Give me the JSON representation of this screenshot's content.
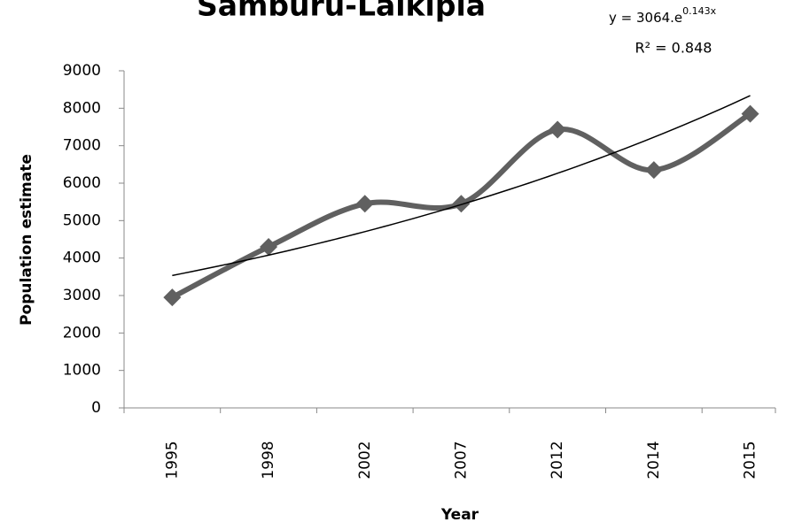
{
  "chart_data": {
    "type": "line",
    "title": "Samburu-Laikipia",
    "xlabel": "Year",
    "ylabel": "Population estimate",
    "categories": [
      "1995",
      "1998",
      "2002",
      "2007",
      "2012",
      "2014",
      "2015"
    ],
    "values": [
      2950,
      4300,
      5450,
      5450,
      7430,
      6350,
      7850
    ],
    "color": "#606060",
    "ylim": [
      0,
      9000
    ],
    "yticks": [
      0,
      1000,
      2000,
      3000,
      4000,
      5000,
      6000,
      7000,
      8000,
      9000
    ],
    "smooth": true,
    "trendline": {
      "a": 3064,
      "b": 0.143,
      "color": "#000000",
      "equation_label": "y = 3064.e",
      "exponent_label": "0.143x",
      "r2_label": "R² = 0.848"
    }
  }
}
